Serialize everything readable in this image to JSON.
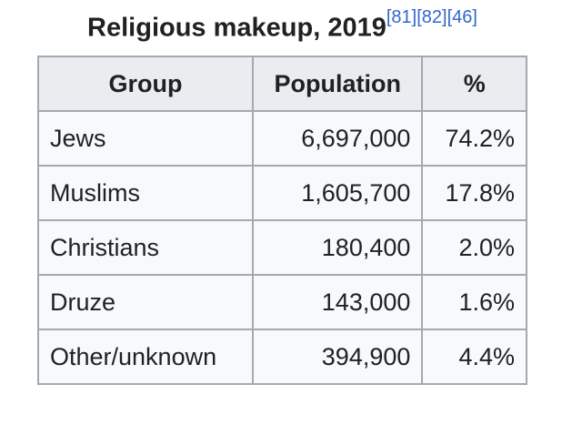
{
  "caption": {
    "title": "Religious makeup, 2019",
    "refs": [
      "[81]",
      "[82]",
      "[46]"
    ]
  },
  "table": {
    "header": [
      "Group",
      "Population",
      "%"
    ],
    "rows": [
      [
        "Jews",
        "6,697,000",
        "74.2%"
      ],
      [
        "Muslims",
        "1,605,700",
        "17.8%"
      ],
      [
        "Christians",
        "180,400",
        "2.0%"
      ],
      [
        "Druze",
        "143,000",
        "1.6%"
      ],
      [
        "Other/unknown",
        "394,900",
        "4.4%"
      ]
    ]
  }
}
